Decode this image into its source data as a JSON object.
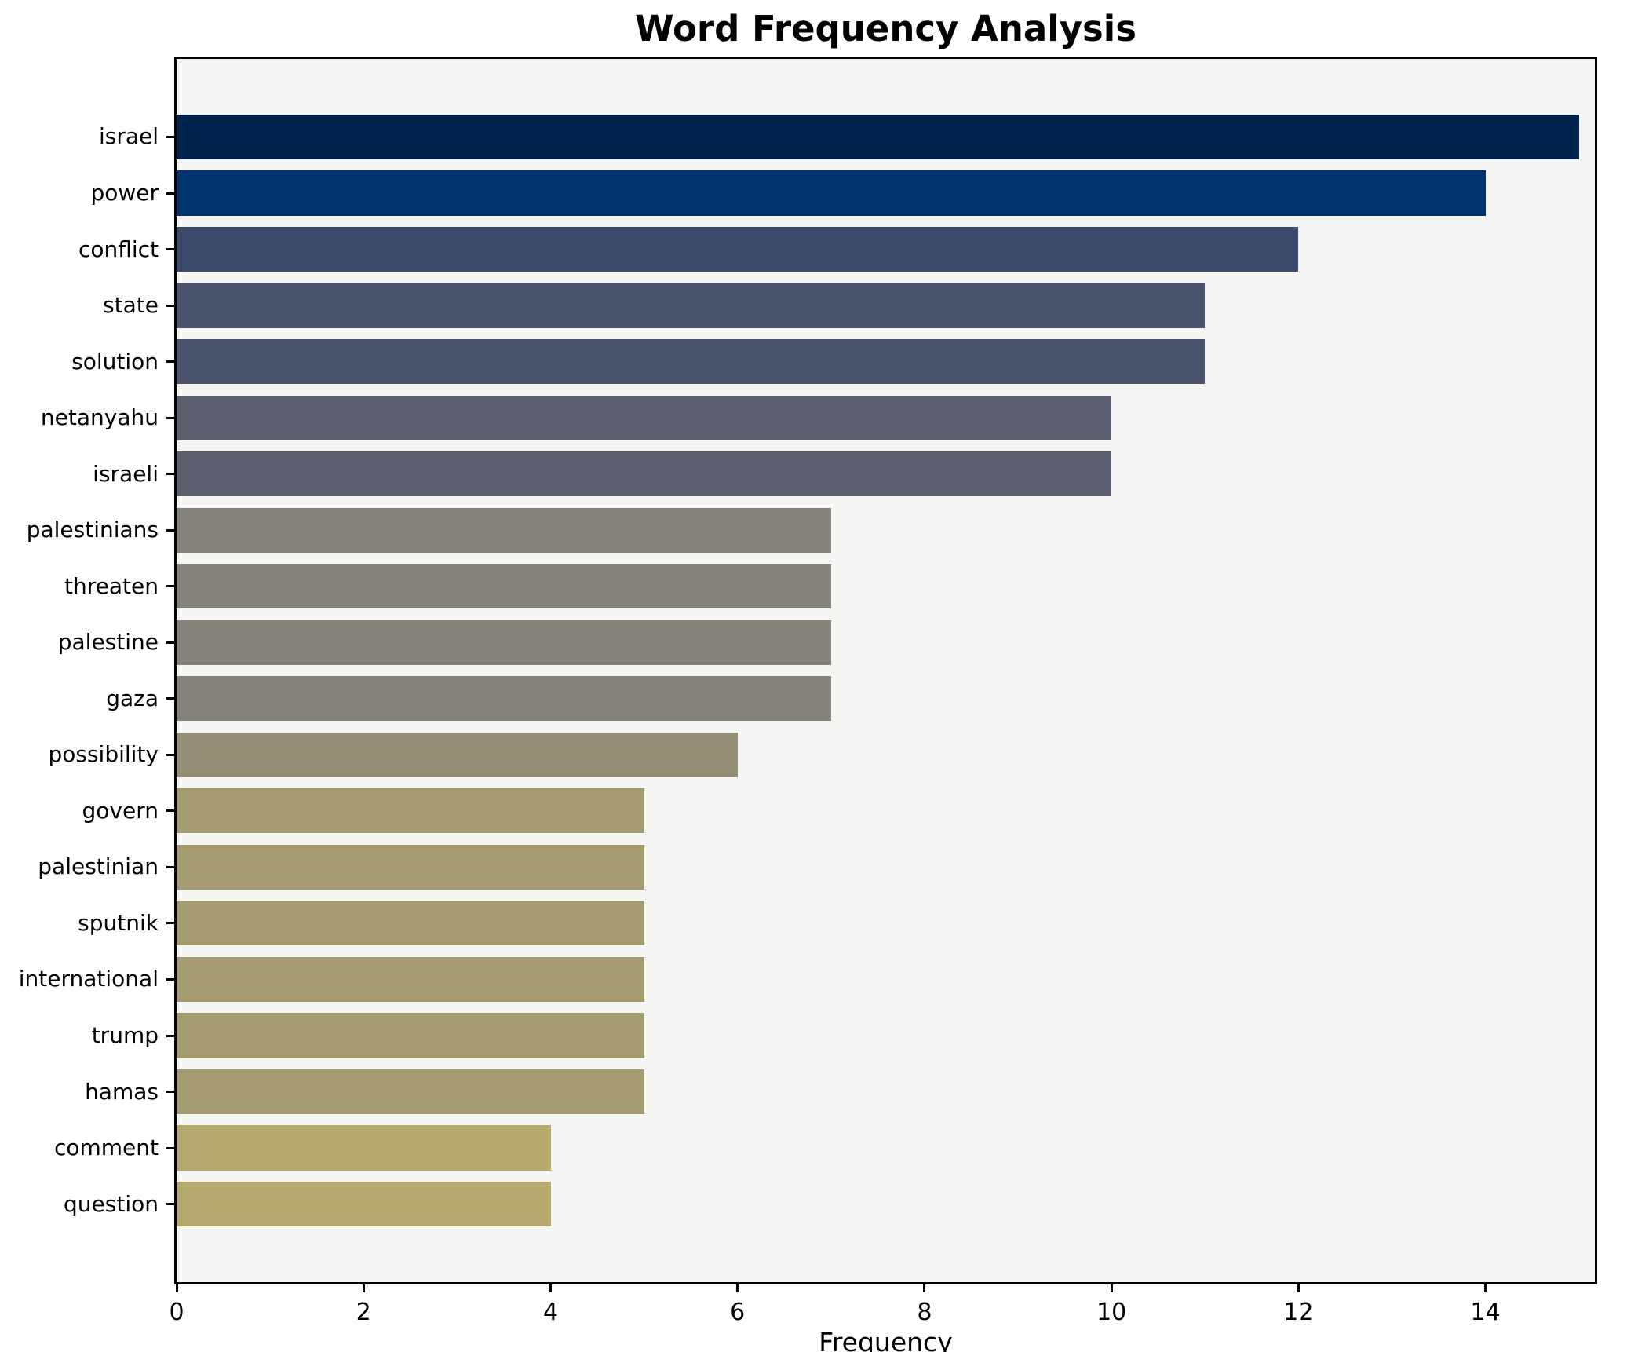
{
  "chart_data": {
    "type": "bar",
    "orientation": "horizontal",
    "title": "Word Frequency Analysis",
    "xlabel": "Frequency",
    "ylabel": "",
    "categories": [
      "israel",
      "power",
      "conflict",
      "state",
      "solution",
      "netanyahu",
      "israeli",
      "palestinians",
      "threaten",
      "palestine",
      "gaza",
      "possibility",
      "govern",
      "palestinian",
      "sputnik",
      "international",
      "trump",
      "hamas",
      "comment",
      "question"
    ],
    "values": [
      15,
      14,
      12,
      11,
      11,
      10,
      10,
      7,
      7,
      7,
      7,
      6,
      5,
      5,
      5,
      5,
      5,
      5,
      4,
      4
    ],
    "bar_colors": [
      "#00234e",
      "#00336f",
      "#3b4a6b",
      "#4b546c",
      "#4b546c",
      "#5b5f6e",
      "#5b5f6e",
      "#858379",
      "#858379",
      "#858379",
      "#858379",
      "#948e76",
      "#a49c70",
      "#a49c70",
      "#a49c70",
      "#a49c70",
      "#a49c70",
      "#a49c70",
      "#b5a96d",
      "#b5a96d"
    ],
    "xticks": [
      0,
      2,
      4,
      6,
      8,
      10,
      12,
      14
    ],
    "xlim": [
      0,
      15.17
    ],
    "grid": false,
    "legend": false,
    "plot_bg": "#f5f5f4",
    "figure_bg": "#ffffff",
    "spine_color": "#000000"
  }
}
